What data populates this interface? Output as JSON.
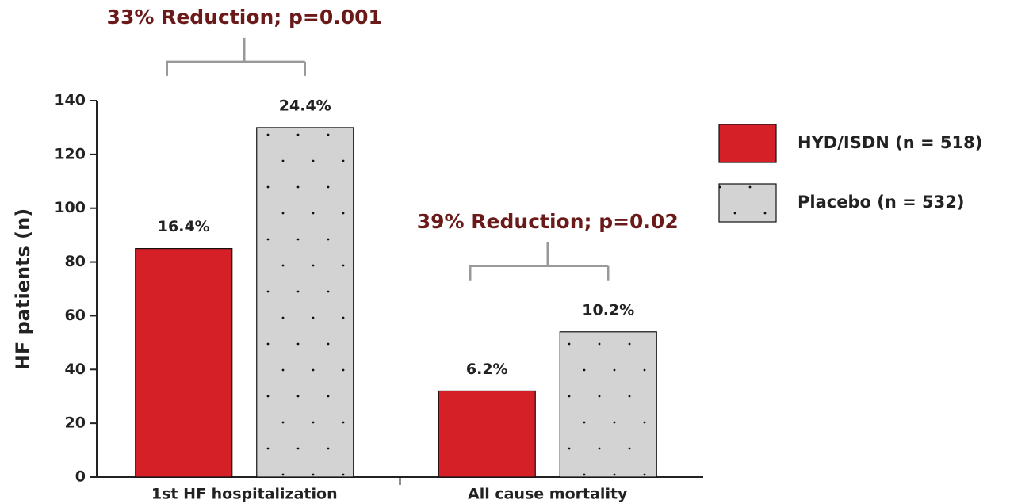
{
  "chart_data": {
    "type": "bar",
    "y_label": "HF patients (n)",
    "categories": [
      "1st HF hospitalization",
      "All cause mortality"
    ],
    "series": [
      {
        "name": "HYD/ISDN (n = 518)",
        "color": "#d62027",
        "values": [
          85,
          32
        ],
        "percent_labels": [
          "16.4%",
          "6.2%"
        ]
      },
      {
        "name": "Placebo (n = 532)",
        "color": "#d3d3d3",
        "pattern": "dotted",
        "values": [
          130,
          54
        ],
        "percent_labels": [
          "24.4%",
          "10.2%"
        ]
      }
    ],
    "annotations": [
      "33% Reduction; p=0.001",
      "39% Reduction; p=0.02"
    ],
    "ylim": [
      0,
      140
    ],
    "yticks": [
      0,
      20,
      40,
      60,
      80,
      100,
      120,
      140
    ],
    "legend": "right"
  }
}
